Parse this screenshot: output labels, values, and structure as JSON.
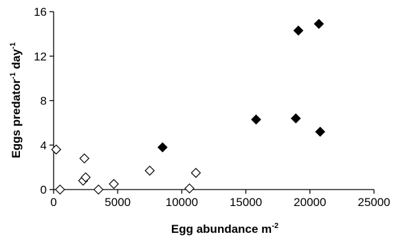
{
  "chart_data": {
    "type": "scatter",
    "title": "",
    "xlabel": {
      "main": "Egg abundance m",
      "sup": "-2"
    },
    "ylabel": {
      "part1": "Eggs  predator",
      "sup1": "-1",
      "part2": " day",
      "sup2": "-1"
    },
    "xlim": [
      0,
      25000
    ],
    "ylim": [
      0,
      16
    ],
    "x_ticks": [
      0,
      5000,
      10000,
      15000,
      20000,
      25000
    ],
    "y_ticks": [
      0,
      4,
      8,
      12,
      16
    ],
    "x_tick_labels": [
      "0",
      "5000",
      "10000",
      "15000",
      "20000",
      "25000"
    ],
    "y_tick_labels": [
      "0",
      "4",
      "8",
      "12",
      "16"
    ],
    "grid": false,
    "legend": "none",
    "series": [
      {
        "marker": "diamond-open",
        "color": "#000000",
        "points": [
          {
            "x": 200,
            "y": 3.6
          },
          {
            "x": 500,
            "y": 0.0
          },
          {
            "x": 2300,
            "y": 0.8
          },
          {
            "x": 2400,
            "y": 2.8
          },
          {
            "x": 2500,
            "y": 1.1
          },
          {
            "x": 3500,
            "y": 0.0
          },
          {
            "x": 4700,
            "y": 0.5
          },
          {
            "x": 7500,
            "y": 1.7
          },
          {
            "x": 10600,
            "y": 0.1
          },
          {
            "x": 11100,
            "y": 1.5
          }
        ]
      },
      {
        "marker": "diamond-filled",
        "color": "#000000",
        "points": [
          {
            "x": 8500,
            "y": 3.8
          },
          {
            "x": 15800,
            "y": 6.3
          },
          {
            "x": 18900,
            "y": 6.4
          },
          {
            "x": 19100,
            "y": 14.3
          },
          {
            "x": 20700,
            "y": 14.9
          },
          {
            "x": 20800,
            "y": 5.2
          }
        ]
      }
    ]
  }
}
